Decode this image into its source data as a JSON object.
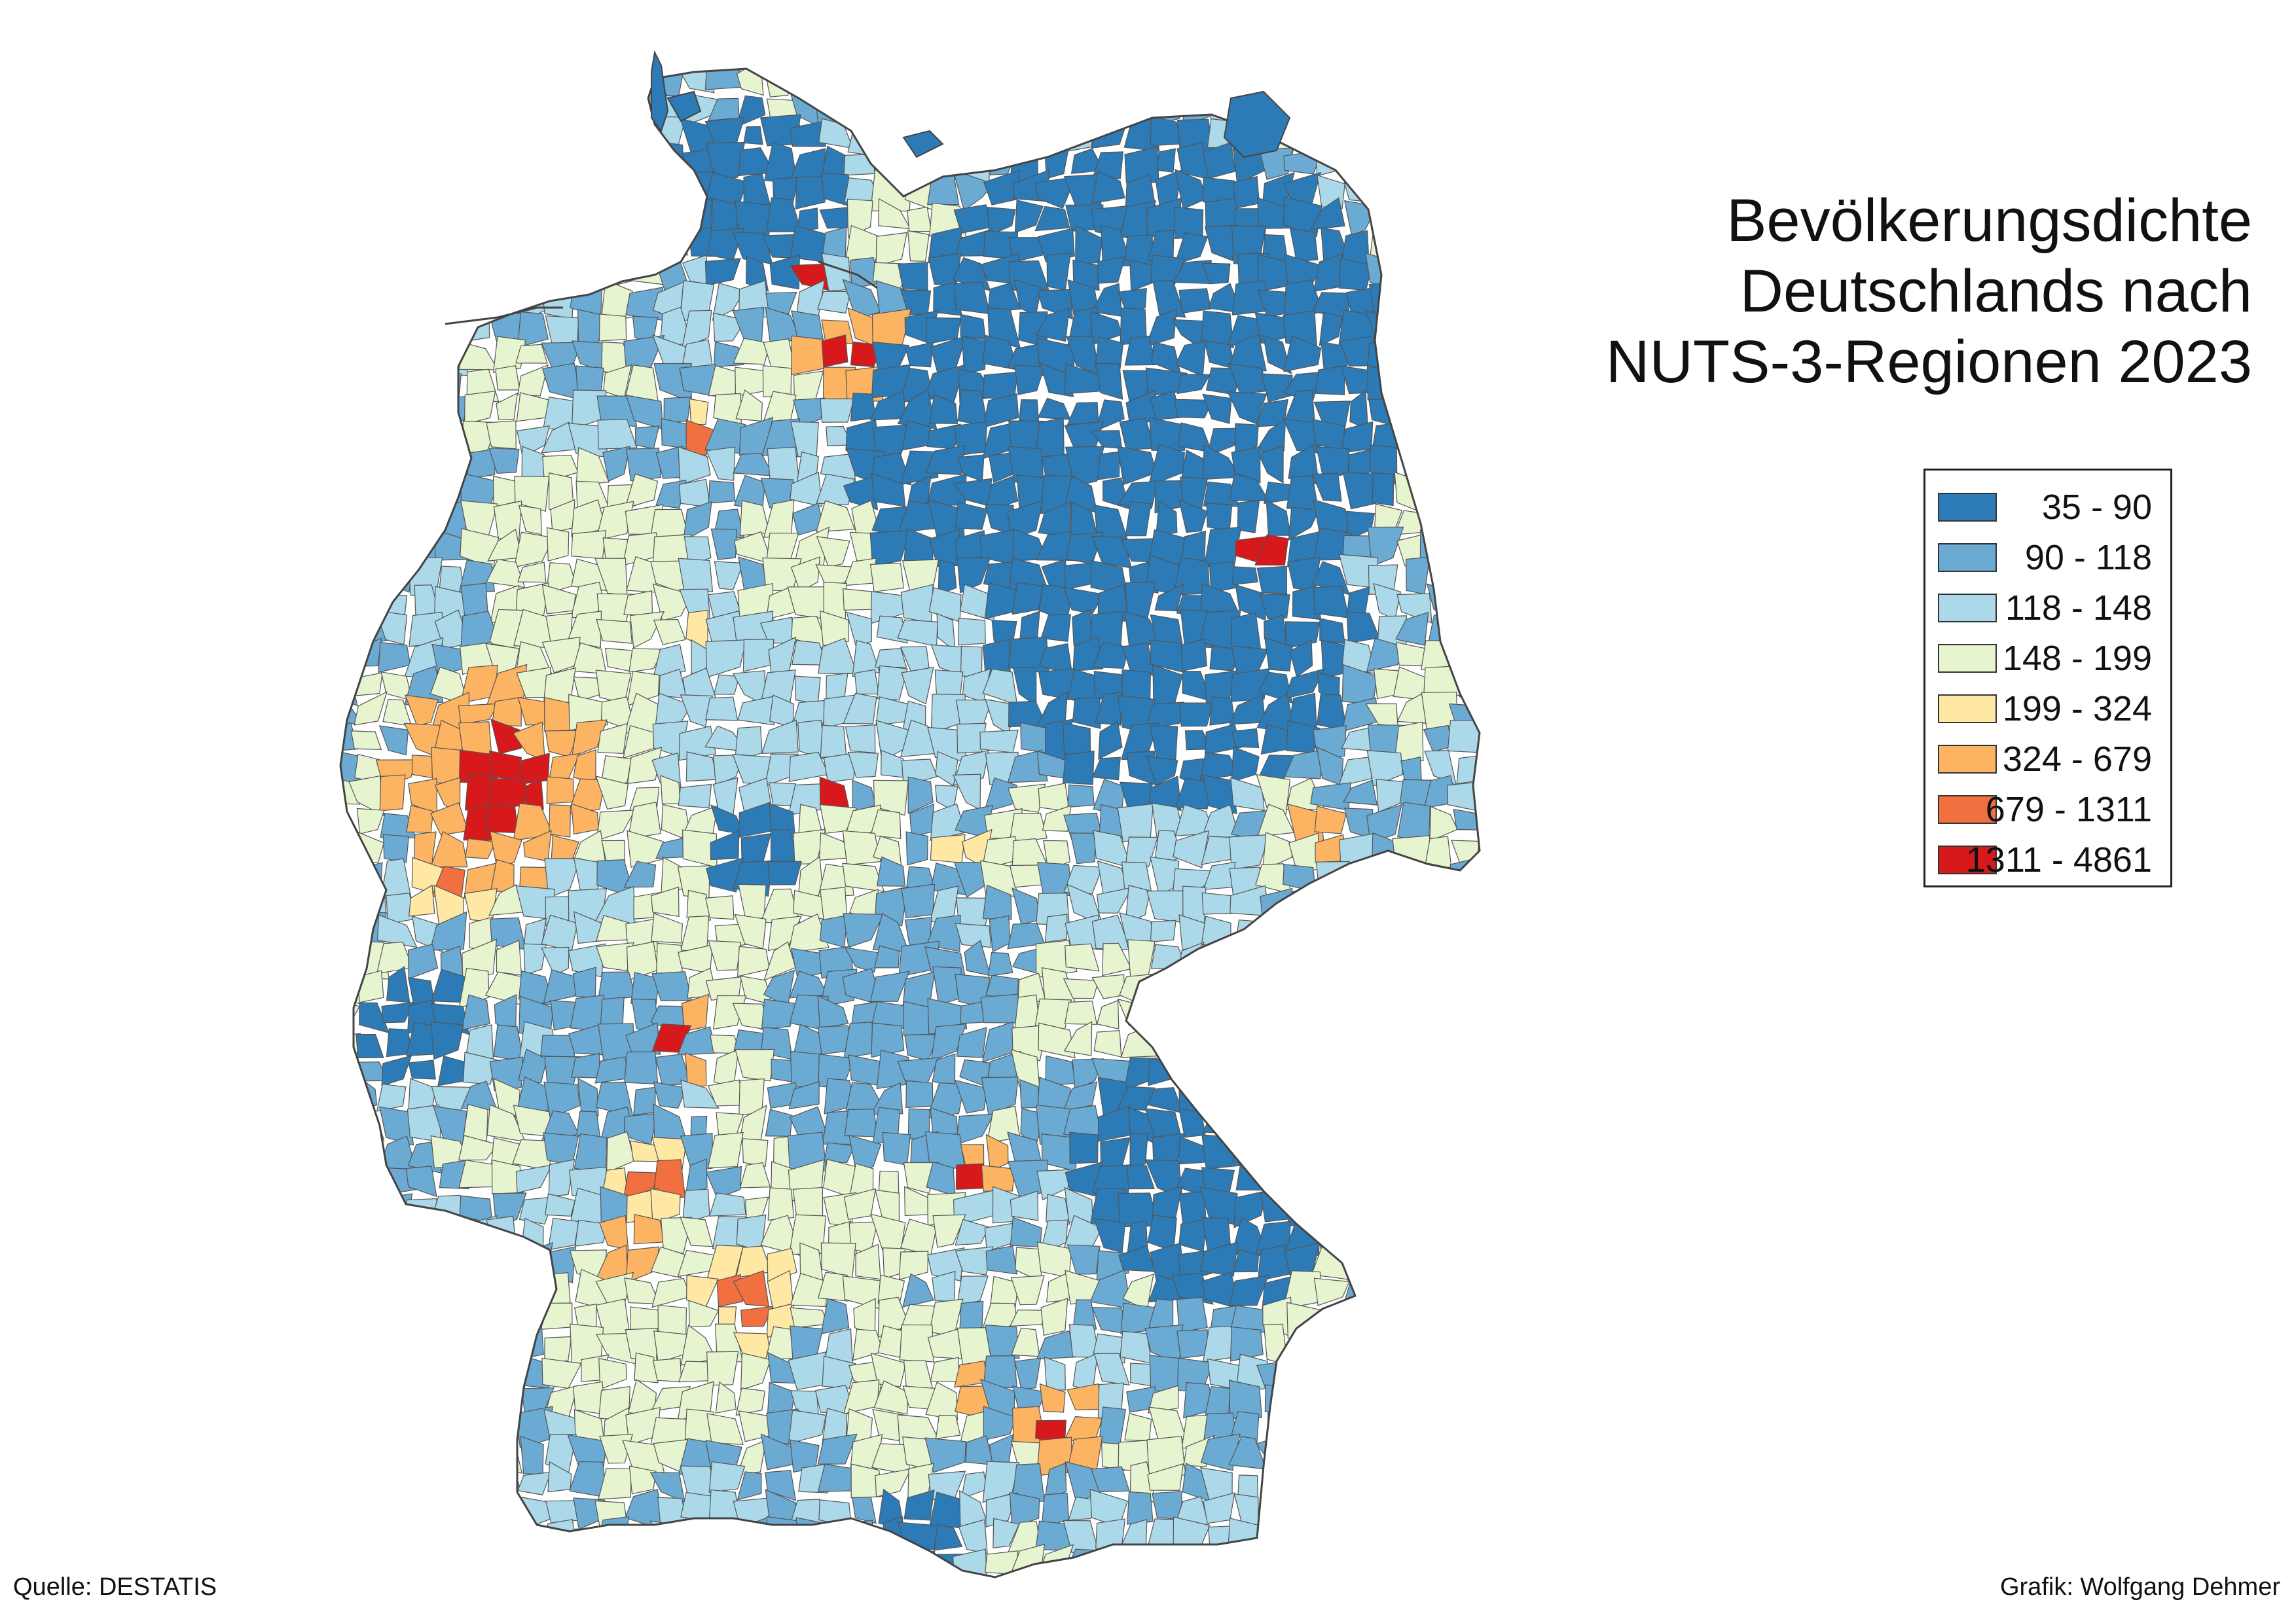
{
  "title": {
    "line1": "Bevölkerungsdichte",
    "line2": "Deutschlands nach",
    "line3": "NUTS-3-Regionen 2023"
  },
  "legend": {
    "classes": [
      {
        "label": "35 - 90",
        "color": "#2c7bb6"
      },
      {
        "label": "90 - 118",
        "color": "#6baad3"
      },
      {
        "label": "118 - 148",
        "color": "#abd9e9"
      },
      {
        "label": "148 - 199",
        "color": "#e6f5d0"
      },
      {
        "label": "199 - 324",
        "color": "#fee8a4"
      },
      {
        "label": "324 - 679",
        "color": "#fdb462"
      },
      {
        "label": "679 - 1311",
        "color": "#f07040"
      },
      {
        "label": "1311 - 4861",
        "color": "#d7191c"
      }
    ]
  },
  "footer": {
    "source": "Quelle: DESTATIS",
    "credit": "Grafik: Wolfgang Dehmer"
  }
}
